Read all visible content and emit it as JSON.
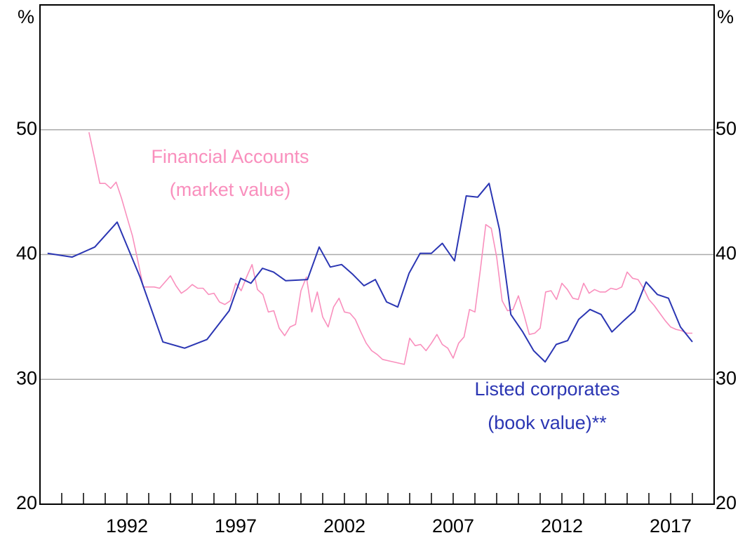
{
  "chart_data": {
    "type": "line",
    "y_unit": "%",
    "annotations": [
      "Financial Accounts",
      "(market value)",
      "Listed corporates",
      "(book value)**"
    ],
    "xlim": [
      1988,
      2019
    ],
    "xticks": [
      1992,
      1997,
      2002,
      2007,
      2012,
      2017
    ],
    "xminor_ticks": [
      1989,
      1990,
      1991,
      1992,
      1993,
      1994,
      1995,
      1996,
      1997,
      1998,
      1999,
      2000,
      2001,
      2002,
      2003,
      2004,
      2005,
      2006,
      2007,
      2008,
      2009,
      2010,
      2011,
      2012,
      2013,
      2014,
      2015,
      2016,
      2017,
      2018
    ],
    "ylim": [
      20,
      60
    ],
    "yticks": [
      20,
      30,
      40,
      50
    ],
    "grid": true,
    "series": [
      {
        "name": "Listed corporates (book value)",
        "color": "#2b36b3",
        "x": [
          1988.35,
          1989.48,
          1990.52,
          1991.55,
          1992.6,
          1993.65,
          1994.65,
          1995.68,
          1996.7,
          1997.23,
          1997.7,
          1998.23,
          1998.74,
          1999.3,
          2000.3,
          2000.84,
          2001.35,
          2001.87,
          2002.39,
          2002.9,
          2003.42,
          2003.94,
          2004.45,
          2004.97,
          2005.48,
          2006.0,
          2006.5,
          2007.06,
          2007.6,
          2008.13,
          2008.65,
          2009.13,
          2009.65,
          2010.2,
          2010.7,
          2011.23,
          2011.74,
          2012.26,
          2012.77,
          2013.29,
          2013.8,
          2014.3,
          2014.84,
          2015.35,
          2015.87,
          2016.39,
          2016.9,
          2017.45,
          2018.0
        ],
        "values": [
          40.1,
          39.8,
          40.6,
          42.6,
          38.2,
          33.0,
          32.5,
          33.2,
          35.5,
          38.1,
          37.7,
          38.9,
          38.6,
          37.9,
          38.0,
          40.6,
          39.0,
          39.2,
          38.4,
          37.5,
          38.0,
          36.2,
          35.8,
          38.5,
          40.1,
          40.1,
          40.9,
          39.5,
          44.7,
          44.6,
          45.7,
          42.0,
          35.2,
          33.8,
          32.3,
          31.4,
          32.8,
          33.1,
          34.8,
          35.6,
          35.2,
          33.8,
          34.7,
          35.5,
          37.8,
          36.8,
          36.5,
          34.2,
          33.0
        ]
      },
      {
        "name": "Financial Accounts (market value)",
        "color": "#f98fbd",
        "x": [
          1990.25,
          1990.5,
          1990.75,
          1991.0,
          1991.25,
          1991.5,
          1991.75,
          1992.0,
          1992.25,
          1992.5,
          1992.75,
          1993.0,
          1993.25,
          1993.5,
          1993.75,
          1994.0,
          1994.25,
          1994.5,
          1994.75,
          1995.0,
          1995.25,
          1995.5,
          1995.75,
          1996.0,
          1996.25,
          1996.5,
          1996.75,
          1997.0,
          1997.25,
          1997.5,
          1997.75,
          1998.0,
          1998.25,
          1998.5,
          1998.75,
          1999.0,
          1999.25,
          1999.5,
          1999.75,
          2000.0,
          2000.25,
          2000.5,
          2000.75,
          2001.0,
          2001.25,
          2001.5,
          2001.75,
          2002.0,
          2002.25,
          2002.5,
          2002.75,
          2003.0,
          2003.25,
          2003.5,
          2003.75,
          2004.0,
          2004.25,
          2004.5,
          2004.75,
          2005.0,
          2005.25,
          2005.5,
          2005.75,
          2006.0,
          2006.25,
          2006.5,
          2006.75,
          2007.0,
          2007.25,
          2007.5,
          2007.75,
          2008.0,
          2008.25,
          2008.5,
          2008.75,
          2009.0,
          2009.25,
          2009.5,
          2009.75,
          2010.0,
          2010.25,
          2010.5,
          2010.75,
          2011.0,
          2011.25,
          2011.5,
          2011.75,
          2012.0,
          2012.25,
          2012.5,
          2012.75,
          2013.0,
          2013.25,
          2013.5,
          2013.75,
          2014.0,
          2014.25,
          2014.5,
          2014.75,
          2015.0,
          2015.25,
          2015.5,
          2015.75,
          2016.0,
          2016.25,
          2016.5,
          2016.75,
          2017.0,
          2017.25,
          2017.5,
          2017.75,
          2018.0
        ],
        "values": [
          49.8,
          47.8,
          45.7,
          45.7,
          45.3,
          45.8,
          44.5,
          43.0,
          41.5,
          39.5,
          37.4,
          37.4,
          37.4,
          37.3,
          37.8,
          38.3,
          37.5,
          36.9,
          37.2,
          37.6,
          37.3,
          37.3,
          36.8,
          36.9,
          36.2,
          36.0,
          36.3,
          37.7,
          37.1,
          38.2,
          39.2,
          37.2,
          36.8,
          35.4,
          35.5,
          34.1,
          33.5,
          34.2,
          34.4,
          37.1,
          38.2,
          35.4,
          37.0,
          35.0,
          34.2,
          35.8,
          36.5,
          35.4,
          35.3,
          34.8,
          33.8,
          32.9,
          32.3,
          32.0,
          31.6,
          31.5,
          31.4,
          31.3,
          31.2,
          33.3,
          32.7,
          32.8,
          32.3,
          32.9,
          33.6,
          32.8,
          32.5,
          31.7,
          32.9,
          33.4,
          35.6,
          35.4,
          38.8,
          42.4,
          42.1,
          39.8,
          36.3,
          35.5,
          35.6,
          36.7,
          35.2,
          33.6,
          33.7,
          34.1,
          37.0,
          37.1,
          36.4,
          37.7,
          37.2,
          36.5,
          36.4,
          37.7,
          36.9,
          37.2,
          37.0,
          37.0,
          37.3,
          37.2,
          37.4,
          38.6,
          38.1,
          38.0,
          37.3,
          36.4,
          35.9,
          35.3,
          34.7,
          34.2,
          34.0,
          33.9,
          33.7,
          33.7
        ]
      }
    ]
  }
}
